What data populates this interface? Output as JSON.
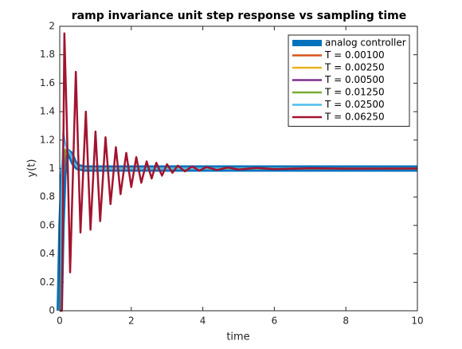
{
  "chart_data": {
    "type": "line",
    "title": "ramp invariance unit step response vs sampling time",
    "x_label": "time",
    "y_label": "y(t)",
    "xlim": [
      0,
      10
    ],
    "ylim": [
      0,
      2
    ],
    "xticks": [
      0,
      2,
      4,
      6,
      8,
      10
    ],
    "yticks": [
      0,
      0.2,
      0.4,
      0.6,
      0.8,
      1,
      1.2,
      1.4,
      1.6,
      1.8,
      2
    ],
    "legend": "northeast",
    "series": [
      {
        "name": "analog controller",
        "color": "#0072bd",
        "x": [
          0,
          0.05,
          0.1,
          0.15,
          0.2,
          0.3,
          0.4,
          0.5,
          0.7,
          1,
          2,
          10
        ],
        "values": [
          0,
          0.6,
          0.95,
          1.08,
          1.12,
          1.1,
          1.04,
          1.01,
          1.0,
          1.0,
          1.0,
          1.0
        ]
      },
      {
        "name": "T = 0.00100",
        "color": "#d95319",
        "x": [
          0,
          0.05,
          0.1,
          0.15,
          0.2,
          0.3,
          0.4,
          0.5,
          0.7,
          1,
          2,
          10
        ],
        "values": [
          0,
          0.61,
          0.96,
          1.09,
          1.12,
          1.1,
          1.04,
          1.01,
          1.0,
          1.0,
          1.0,
          1.0
        ]
      },
      {
        "name": "T = 0.00250",
        "color": "#edb120",
        "x": [
          0,
          0.05,
          0.1,
          0.15,
          0.2,
          0.3,
          0.4,
          0.5,
          0.7,
          1,
          2,
          10
        ],
        "values": [
          0,
          0.62,
          0.97,
          1.1,
          1.13,
          1.1,
          1.04,
          1.01,
          1.0,
          1.0,
          1.0,
          1.0
        ]
      },
      {
        "name": "T = 0.00500",
        "color": "#7e2f8e",
        "x": [
          0,
          0.05,
          0.1,
          0.15,
          0.2,
          0.3,
          0.4,
          0.5,
          0.7,
          1,
          2,
          10
        ],
        "values": [
          0,
          0.64,
          0.99,
          1.11,
          1.13,
          1.1,
          1.04,
          1.01,
          1.0,
          1.0,
          1.0,
          1.0
        ]
      },
      {
        "name": "T = 0.01250",
        "color": "#77ac30",
        "x": [
          0,
          0.05,
          0.1,
          0.15,
          0.2,
          0.3,
          0.4,
          0.5,
          0.7,
          1,
          2,
          10
        ],
        "values": [
          0,
          0.68,
          1.03,
          1.13,
          1.14,
          1.1,
          1.04,
          1.01,
          1.0,
          1.0,
          1.0,
          1.0
        ]
      },
      {
        "name": "T = 0.02500",
        "color": "#4dbeee",
        "x": [
          0,
          0.025,
          0.05,
          0.1,
          0.15,
          0.2,
          0.3,
          0.4,
          0.5,
          0.7,
          1,
          2,
          10
        ],
        "values": [
          0,
          0.5,
          0.8,
          1.25,
          1.18,
          1.14,
          1.1,
          1.04,
          1.01,
          1.0,
          1.0,
          1.0,
          1.0
        ]
      },
      {
        "name": "T = 0.06250",
        "color": "#a2142f",
        "x": [
          0,
          0.06,
          0.13,
          0.2,
          0.29,
          0.45,
          0.58,
          0.73,
          0.86,
          1.0,
          1.13,
          1.28,
          1.42,
          1.57,
          1.7,
          1.86,
          2.0,
          2.14,
          2.28,
          2.43,
          2.57,
          2.7,
          2.86,
          3.0,
          3.15,
          3.3,
          3.5,
          3.7,
          3.9,
          4.1,
          4.4,
          4.7,
          5,
          5.5,
          6,
          7,
          8,
          10
        ],
        "values": [
          0,
          0,
          1.95,
          1.3,
          0.27,
          1.68,
          0.55,
          1.4,
          0.57,
          1.26,
          0.63,
          1.22,
          0.75,
          1.15,
          0.82,
          1.11,
          0.87,
          1.08,
          0.9,
          1.05,
          0.93,
          1.04,
          0.95,
          1.03,
          0.97,
          1.02,
          0.98,
          1.015,
          0.985,
          1.01,
          0.99,
          1.007,
          0.993,
          1.004,
          0.996,
          1.002,
          0.999,
          1
        ]
      }
    ]
  }
}
